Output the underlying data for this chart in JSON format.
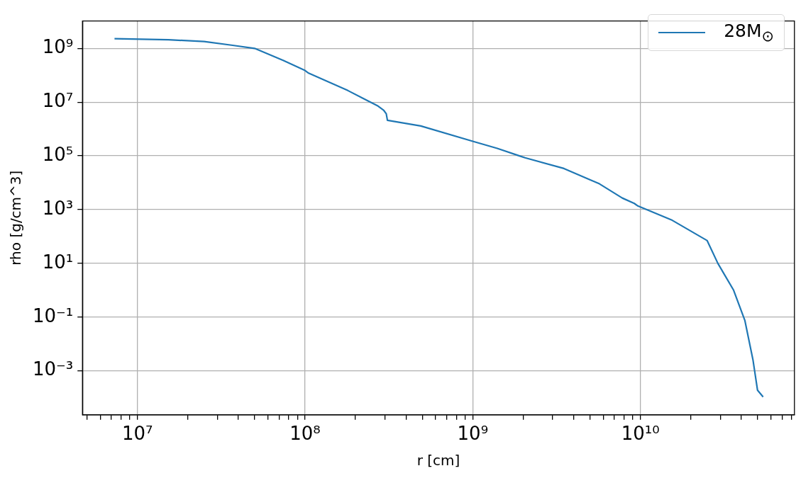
{
  "chart_data": {
    "type": "line",
    "xlabel": "r [cm]",
    "ylabel": "rho [g/cm^3]",
    "log": "xy",
    "grid": true,
    "legend": "top right",
    "marker": "none",
    "line_style": "solid",
    "xlim": [
      4700000.0,
      83000000000.0
    ],
    "xticks": [
      {
        "value": 5000000.0,
        "label": null
      },
      {
        "value": 6000000.0,
        "label": null
      },
      {
        "value": 7000000.0,
        "label": null
      },
      {
        "value": 8000000.0,
        "label": null
      },
      {
        "value": 9000000.0,
        "label": null
      },
      {
        "value": 10000000.0,
        "label": "10⁷"
      },
      {
        "value": 20000000.0,
        "label": null
      },
      {
        "value": 30000000.0,
        "label": null
      },
      {
        "value": 40000000.0,
        "label": null
      },
      {
        "value": 50000000.0,
        "label": null
      },
      {
        "value": 60000000.0,
        "label": null
      },
      {
        "value": 70000000.0,
        "label": null
      },
      {
        "value": 80000000.0,
        "label": null
      },
      {
        "value": 90000000.0,
        "label": null
      },
      {
        "value": 100000000.0,
        "label": "10⁸"
      },
      {
        "value": 200000000.0,
        "label": null
      },
      {
        "value": 300000000.0,
        "label": null
      },
      {
        "value": 400000000.0,
        "label": null
      },
      {
        "value": 500000000.0,
        "label": null
      },
      {
        "value": 600000000.0,
        "label": null
      },
      {
        "value": 700000000.0,
        "label": null
      },
      {
        "value": 800000000.0,
        "label": null
      },
      {
        "value": 900000000.0,
        "label": null
      },
      {
        "value": 1000000000.0,
        "label": "10⁹"
      },
      {
        "value": 2000000000.0,
        "label": null
      },
      {
        "value": 3000000000.0,
        "label": null
      },
      {
        "value": 4000000000.0,
        "label": null
      },
      {
        "value": 5000000000.0,
        "label": null
      },
      {
        "value": 6000000000.0,
        "label": null
      },
      {
        "value": 7000000000.0,
        "label": null
      },
      {
        "value": 8000000000.0,
        "label": null
      },
      {
        "value": 9000000000.0,
        "label": null
      },
      {
        "value": 10000000000.0,
        "label": "10¹⁰"
      },
      {
        "value": 20000000000.0,
        "label": null
      },
      {
        "value": 30000000000.0,
        "label": null
      },
      {
        "value": 40000000000.0,
        "label": null
      },
      {
        "value": 50000000000.0,
        "label": null
      },
      {
        "value": 60000000000.0,
        "label": null
      },
      {
        "value": 70000000000.0,
        "label": null
      },
      {
        "value": 80000000000.0,
        "label": null
      }
    ],
    "ylim": [
      2.3e-05,
      10500000000.0
    ],
    "yticks": [
      {
        "value": 0.001,
        "label": "10⁻³"
      },
      {
        "value": 0.1,
        "label": "10⁻¹"
      },
      {
        "value": 10,
        "label": "10¹"
      },
      {
        "value": 1000,
        "label": "10³"
      },
      {
        "value": 100000,
        "label": "10⁵"
      },
      {
        "value": 10000000,
        "label": "10⁷"
      },
      {
        "value": 1000000000,
        "label": "10⁹"
      }
    ],
    "x": [
      7300000.0,
      15300000.0,
      25000000.0,
      37000000.0,
      50000000.0,
      74000000.0,
      100000000.0,
      105000000.0,
      180000000.0,
      270000000.0,
      295000000.0,
      305000000.0,
      310000000.0,
      490000000.0,
      1000000000.0,
      1400000000.0,
      1900000000.0,
      2050000000.0,
      3500000000.0,
      5700000000.0,
      7800000000.0,
      9200000000.0,
      9600000000.0,
      15500000000.0,
      25000000000.0,
      29000000000.0,
      36000000000.0,
      42000000000.0,
      47000000000.0,
      50000000000.0,
      54000000000.0
    ],
    "series": [
      {
        "name": "28M$_{⊙}$",
        "color": "#1f77b4",
        "values": [
          2300000000.0,
          2100000000.0,
          1800000000.0,
          1300000000.0,
          1000000000.0,
          360000000.0,
          150000000.0,
          120000000.0,
          27000000.0,
          7400000.0,
          4900000.0,
          3700000.0,
          2100000.0,
          1300000.0,
          350000.0,
          190000.0,
          100000.0,
          85000.0,
          34000.0,
          9100.0,
          2700.0,
          1700.0,
          1400.0,
          400,
          71,
          10,
          1,
          0.076,
          0.0025,
          0.00019,
          0.000107
        ]
      }
    ]
  }
}
